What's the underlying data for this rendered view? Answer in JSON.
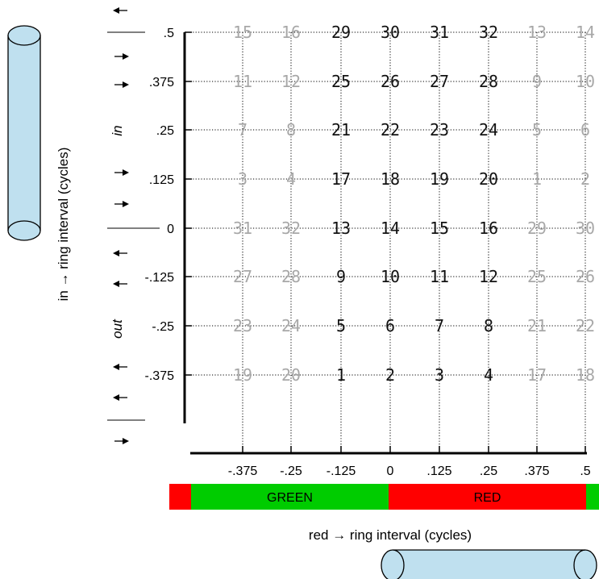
{
  "y_axis": {
    "title": "in → ring interval (cycles)",
    "ticks": [
      ".5",
      ".375",
      ".25",
      ".125",
      "0",
      "-.125",
      "-.25",
      "-.375"
    ],
    "region_in": "in",
    "region_out": "out"
  },
  "x_axis": {
    "title": "red → ring interval (cycles)",
    "ticks": [
      "-.375",
      "-.25",
      "-.125",
      "0",
      ".125",
      ".25",
      ".375",
      ".5"
    ]
  },
  "bands": [
    {
      "label": "",
      "color": "#ff0000"
    },
    {
      "label": "GREEN",
      "color": "#00cc00"
    },
    {
      "label": "RED",
      "color": "#ff0000"
    },
    {
      "label": "",
      "color": "#00cc00"
    }
  ],
  "grid": [
    [
      {
        "v": "15",
        "k": 0
      },
      {
        "v": "16",
        "k": 0
      },
      {
        "v": "29",
        "k": 1
      },
      {
        "v": "30",
        "k": 1
      },
      {
        "v": "31",
        "k": 1
      },
      {
        "v": "32",
        "k": 1
      },
      {
        "v": "13",
        "k": 0
      },
      {
        "v": "14",
        "k": 0
      }
    ],
    [
      {
        "v": "11",
        "k": 0
      },
      {
        "v": "12",
        "k": 0
      },
      {
        "v": "25",
        "k": 1
      },
      {
        "v": "26",
        "k": 1
      },
      {
        "v": "27",
        "k": 1
      },
      {
        "v": "28",
        "k": 1
      },
      {
        "v": "9",
        "k": 0
      },
      {
        "v": "10",
        "k": 0
      }
    ],
    [
      {
        "v": "7",
        "k": 0
      },
      {
        "v": "8",
        "k": 0
      },
      {
        "v": "21",
        "k": 1
      },
      {
        "v": "22",
        "k": 1
      },
      {
        "v": "23",
        "k": 1
      },
      {
        "v": "24",
        "k": 1
      },
      {
        "v": "5",
        "k": 0
      },
      {
        "v": "6",
        "k": 0
      }
    ],
    [
      {
        "v": "3",
        "k": 0
      },
      {
        "v": "4",
        "k": 0
      },
      {
        "v": "17",
        "k": 1
      },
      {
        "v": "18",
        "k": 1
      },
      {
        "v": "19",
        "k": 1
      },
      {
        "v": "20",
        "k": 1
      },
      {
        "v": "1",
        "k": 0
      },
      {
        "v": "2",
        "k": 0
      }
    ],
    [
      {
        "v": "31",
        "k": 0
      },
      {
        "v": "32",
        "k": 0
      },
      {
        "v": "13",
        "k": 1
      },
      {
        "v": "14",
        "k": 1
      },
      {
        "v": "15",
        "k": 1
      },
      {
        "v": "16",
        "k": 1
      },
      {
        "v": "29",
        "k": 0
      },
      {
        "v": "30",
        "k": 0
      }
    ],
    [
      {
        "v": "27",
        "k": 0
      },
      {
        "v": "28",
        "k": 0
      },
      {
        "v": "9",
        "k": 1
      },
      {
        "v": "10",
        "k": 1
      },
      {
        "v": "11",
        "k": 1
      },
      {
        "v": "12",
        "k": 1
      },
      {
        "v": "25",
        "k": 0
      },
      {
        "v": "26",
        "k": 0
      }
    ],
    [
      {
        "v": "23",
        "k": 0
      },
      {
        "v": "24",
        "k": 0
      },
      {
        "v": "5",
        "k": 1
      },
      {
        "v": "6",
        "k": 1
      },
      {
        "v": "7",
        "k": 1
      },
      {
        "v": "8",
        "k": 1
      },
      {
        "v": "21",
        "k": 0
      },
      {
        "v": "22",
        "k": 0
      }
    ],
    [
      {
        "v": "19",
        "k": 0
      },
      {
        "v": "20",
        "k": 0
      },
      {
        "v": "1",
        "k": 1
      },
      {
        "v": "2",
        "k": 1
      },
      {
        "v": "3",
        "k": 1
      },
      {
        "v": "4",
        "k": 1
      },
      {
        "v": "17",
        "k": 0
      },
      {
        "v": "18",
        "k": 0
      }
    ]
  ],
  "colors": {
    "active_number": "#111111",
    "inactive_number": "#a8a8a8",
    "cylinder_fill": "#bfe0ef",
    "cylinder_stroke": "#000000"
  },
  "icons": [
    "vertical-cylinder-icon",
    "horizontal-cylinder-icon",
    "arrow-left-icon",
    "arrow-right-icon"
  ]
}
